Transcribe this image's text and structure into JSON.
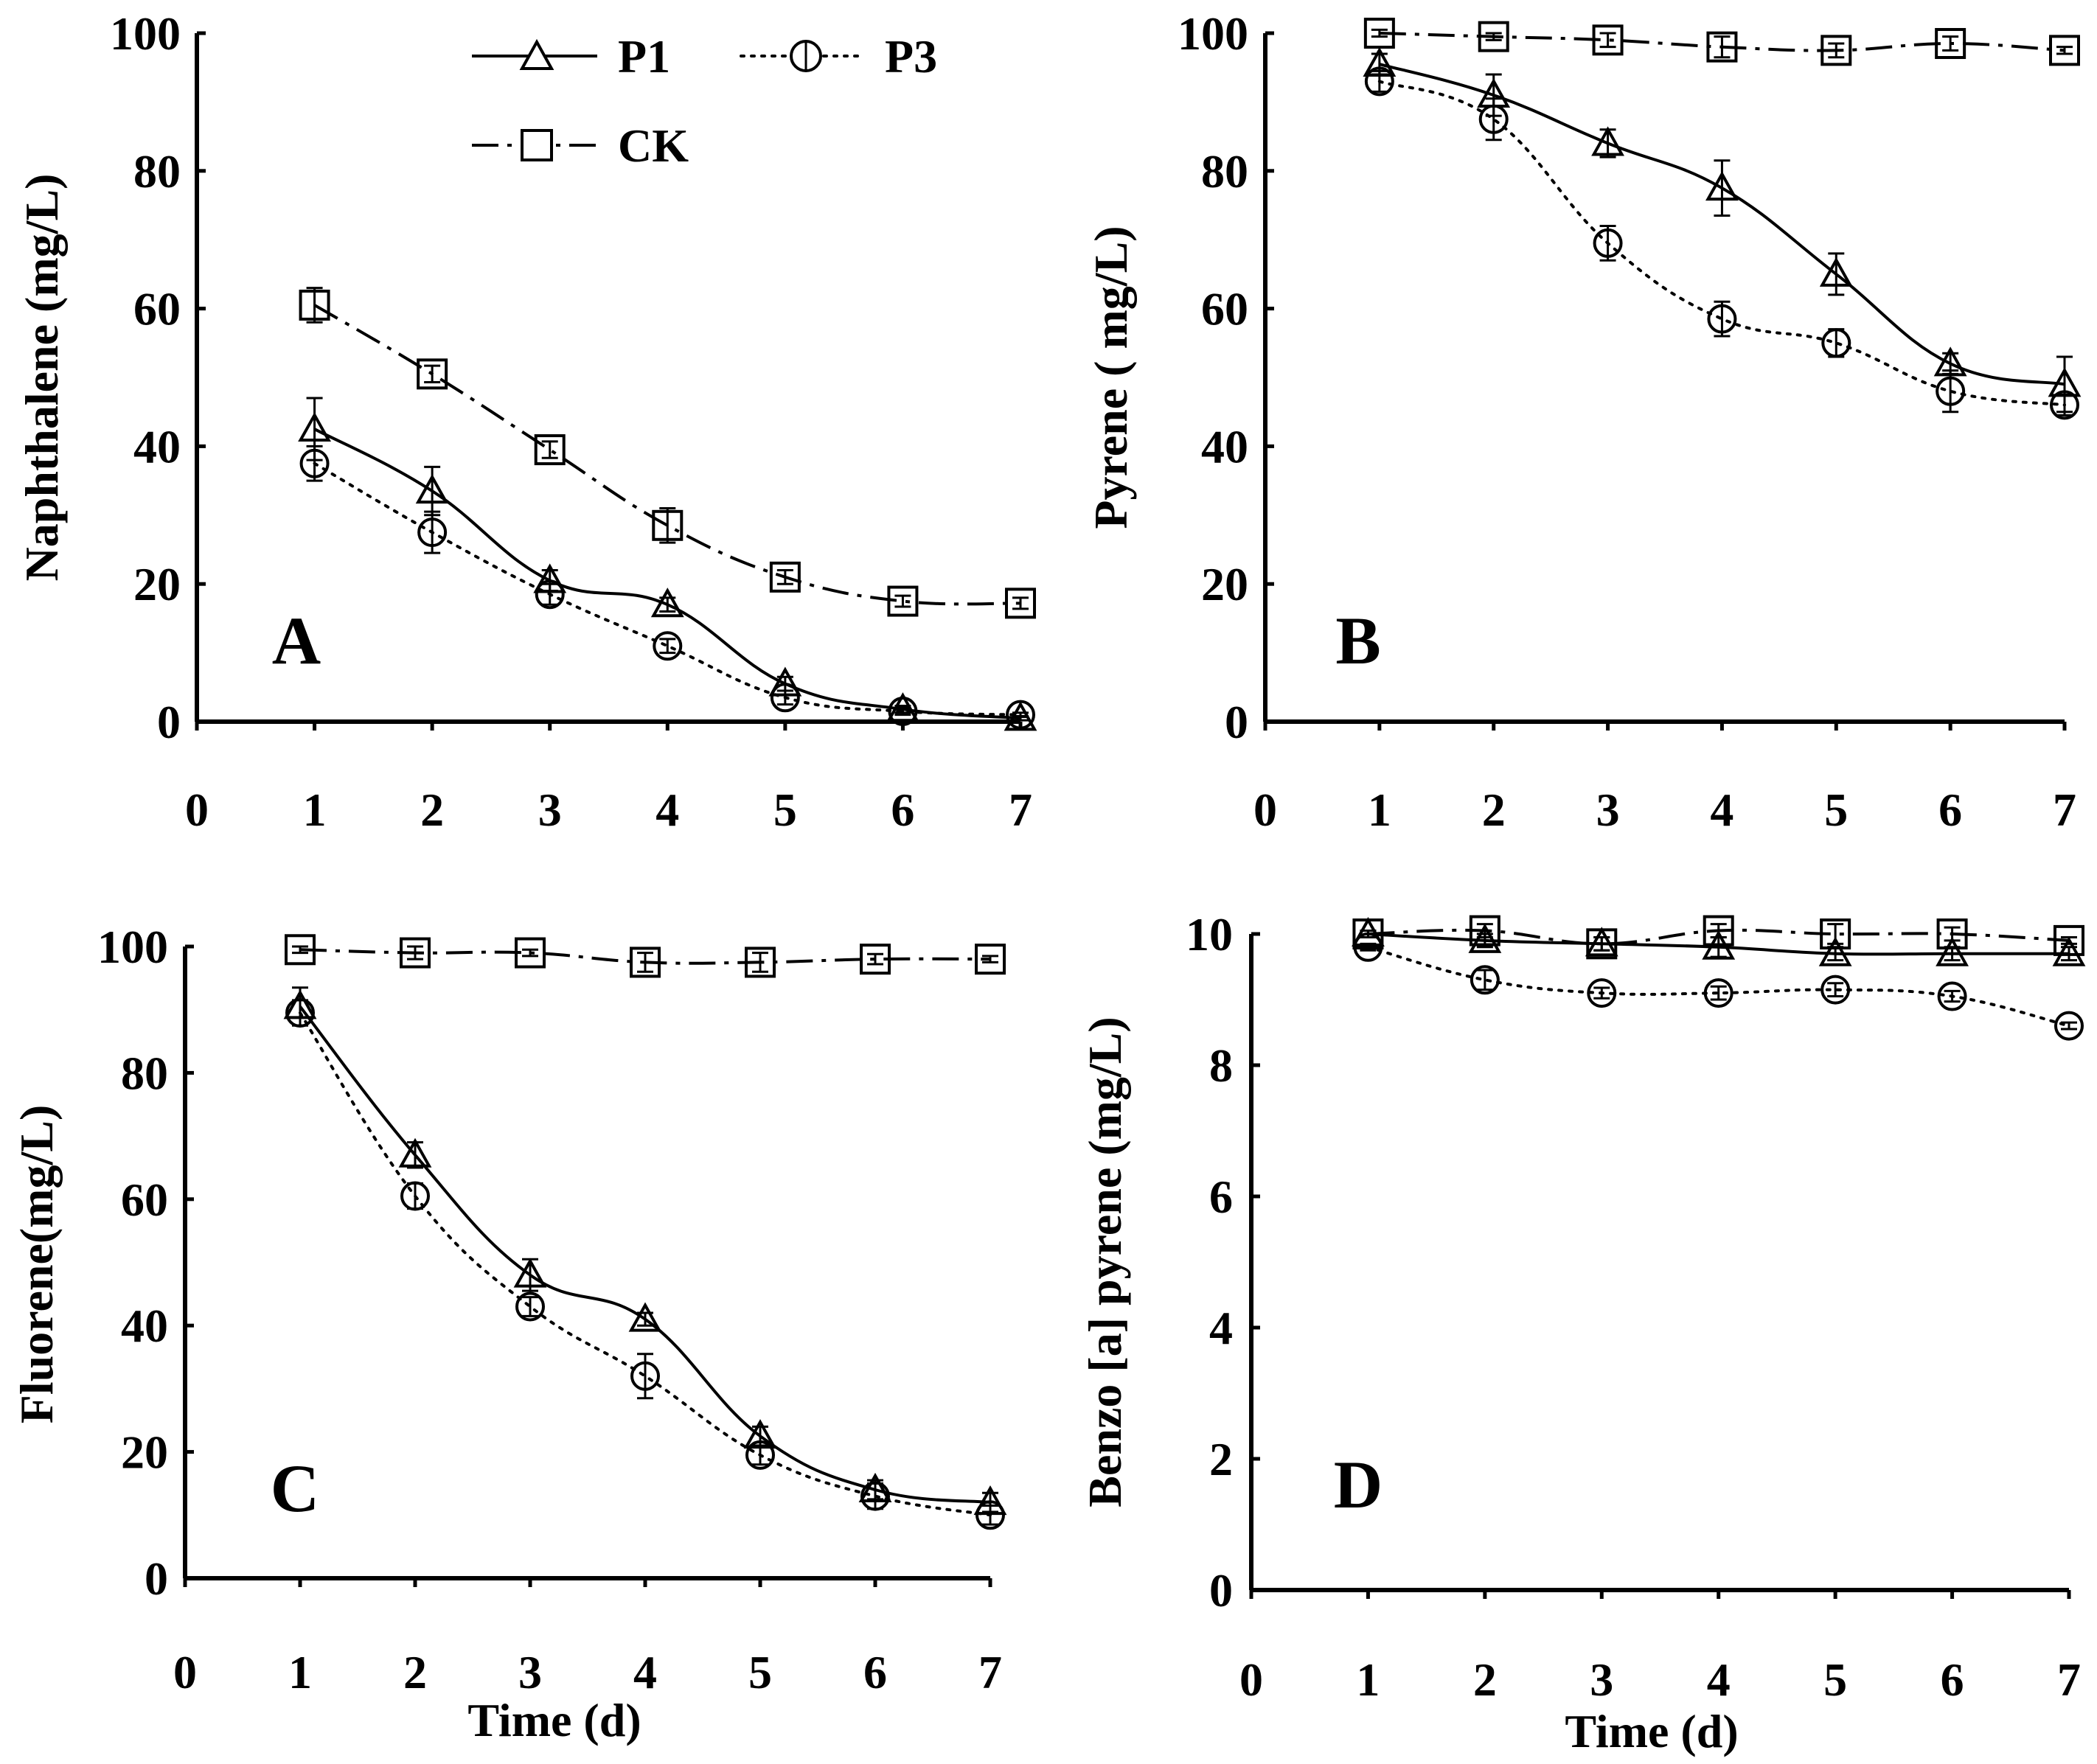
{
  "figure": {
    "legend": [
      {
        "key": "P1",
        "label": "P1",
        "marker": "triangle",
        "dash": "solid"
      },
      {
        "key": "P3",
        "label": "P3",
        "marker": "circle",
        "dash": "dotted"
      },
      {
        "key": "CK",
        "label": "CK",
        "marker": "square",
        "dash": "dashdot"
      }
    ]
  },
  "chart_data": [
    {
      "type": "line",
      "panel": "A",
      "ylabel": "Naphthalene (mg/L)",
      "xlabel": "",
      "xlim": [
        0,
        7
      ],
      "ylim": [
        0,
        100
      ],
      "xticks": [
        "0",
        "1",
        "2",
        "3",
        "4",
        "5",
        "6",
        "7"
      ],
      "yticks": [
        "0",
        "20",
        "40",
        "60",
        "80",
        "100"
      ],
      "x": [
        1,
        2,
        3,
        4,
        5,
        6,
        7
      ],
      "series": [
        {
          "name": "P1",
          "values": [
            42.5,
            33.5,
            20.5,
            17.0,
            5.5,
            1.8,
            0.5
          ],
          "err": [
            4.5,
            3.5,
            1.5,
            1.0,
            1.0,
            0.5,
            0.3
          ]
        },
        {
          "name": "P3",
          "values": [
            37.5,
            27.5,
            18.5,
            11.0,
            3.5,
            1.5,
            1.0
          ],
          "err": [
            2.5,
            3.0,
            1.5,
            1.0,
            1.0,
            0.5,
            0.3
          ]
        },
        {
          "name": "CK",
          "values": [
            60.5,
            50.5,
            39.5,
            28.5,
            21.0,
            17.5,
            17.2
          ],
          "err": [
            2.5,
            1.2,
            1.2,
            2.5,
            1.0,
            0.8,
            0.8
          ]
        }
      ]
    },
    {
      "type": "line",
      "panel": "B",
      "ylabel": "Pyrene ( mg/L)",
      "xlabel": "",
      "xlim": [
        0,
        7
      ],
      "ylim": [
        0,
        100
      ],
      "xticks": [
        "0",
        "1",
        "2",
        "3",
        "4",
        "5",
        "6",
        "7"
      ],
      "yticks": [
        "0",
        "20",
        "40",
        "60",
        "80",
        "100"
      ],
      "x": [
        1,
        2,
        3,
        4,
        5,
        6,
        7
      ],
      "series": [
        {
          "name": "P1",
          "values": [
            95.5,
            91.0,
            84.0,
            77.5,
            65.0,
            52.0,
            49.0
          ],
          "err": [
            1.5,
            3.0,
            2.0,
            4.0,
            3.0,
            1.5,
            4.0
          ]
        },
        {
          "name": "P3",
          "values": [
            93.0,
            87.5,
            69.5,
            58.5,
            55.0,
            48.0,
            46.0
          ],
          "err": [
            1.5,
            3.0,
            2.5,
            2.5,
            2.0,
            3.0,
            1.5
          ]
        },
        {
          "name": "CK",
          "values": [
            100.0,
            99.5,
            99.0,
            98.0,
            97.5,
            98.5,
            97.5
          ],
          "err": [
            0.5,
            0.5,
            1.0,
            1.5,
            1.0,
            1.0,
            0.5
          ]
        }
      ]
    },
    {
      "type": "line",
      "panel": "C",
      "ylabel": "Fluorene(mg/L)",
      "xlabel": "Time (d)",
      "xlim": [
        0,
        7
      ],
      "ylim": [
        0,
        100
      ],
      "xticks": [
        "0",
        "1",
        "2",
        "3",
        "4",
        "5",
        "6",
        "7"
      ],
      "yticks": [
        "0",
        "20",
        "40",
        "60",
        "80",
        "100"
      ],
      "x": [
        1,
        2,
        3,
        4,
        5,
        6,
        7
      ],
      "series": [
        {
          "name": "P1",
          "values": [
            90.5,
            67.0,
            48.0,
            41.0,
            22.5,
            14.0,
            12.0
          ],
          "err": [
            3.0,
            2.0,
            2.5,
            1.0,
            1.5,
            1.5,
            1.5
          ]
        },
        {
          "name": "P3",
          "values": [
            89.5,
            60.5,
            43.0,
            32.0,
            19.5,
            13.0,
            10.0
          ],
          "err": [
            2.0,
            2.0,
            1.5,
            3.5,
            1.5,
            2.0,
            1.5
          ]
        },
        {
          "name": "CK",
          "values": [
            99.5,
            99.0,
            99.0,
            97.5,
            97.5,
            98.0,
            98.0
          ],
          "err": [
            0.5,
            1.0,
            0.5,
            1.5,
            1.5,
            0.8,
            0.5
          ]
        }
      ]
    },
    {
      "type": "line",
      "panel": "D",
      "ylabel": "Benzo [a] pyrene (mg/L)",
      "xlabel": "Time (d)",
      "xlim": [
        0,
        7
      ],
      "ylim": [
        0,
        10
      ],
      "xticks": [
        "0",
        "1",
        "2",
        "3",
        "4",
        "5",
        "6",
        "7"
      ],
      "yticks": [
        "0",
        "2",
        "4",
        "6",
        "8",
        "10"
      ],
      "x": [
        1,
        2,
        3,
        4,
        5,
        6,
        7
      ],
      "series": [
        {
          "name": "P1",
          "values": [
            10.0,
            9.9,
            9.85,
            9.8,
            9.7,
            9.7,
            9.7
          ],
          "err": [
            0.05,
            0.1,
            0.1,
            0.15,
            0.1,
            0.1,
            0.1
          ]
        },
        {
          "name": "P3",
          "values": [
            9.8,
            9.3,
            9.1,
            9.1,
            9.15,
            9.05,
            8.6
          ],
          "err": [
            0.05,
            0.15,
            0.08,
            0.1,
            0.1,
            0.08,
            0.05
          ]
        },
        {
          "name": "CK",
          "values": [
            10.0,
            10.05,
            9.85,
            10.05,
            10.0,
            10.0,
            9.9
          ],
          "err": [
            0.05,
            0.1,
            0.1,
            0.1,
            0.15,
            0.1,
            0.05
          ]
        }
      ]
    }
  ]
}
